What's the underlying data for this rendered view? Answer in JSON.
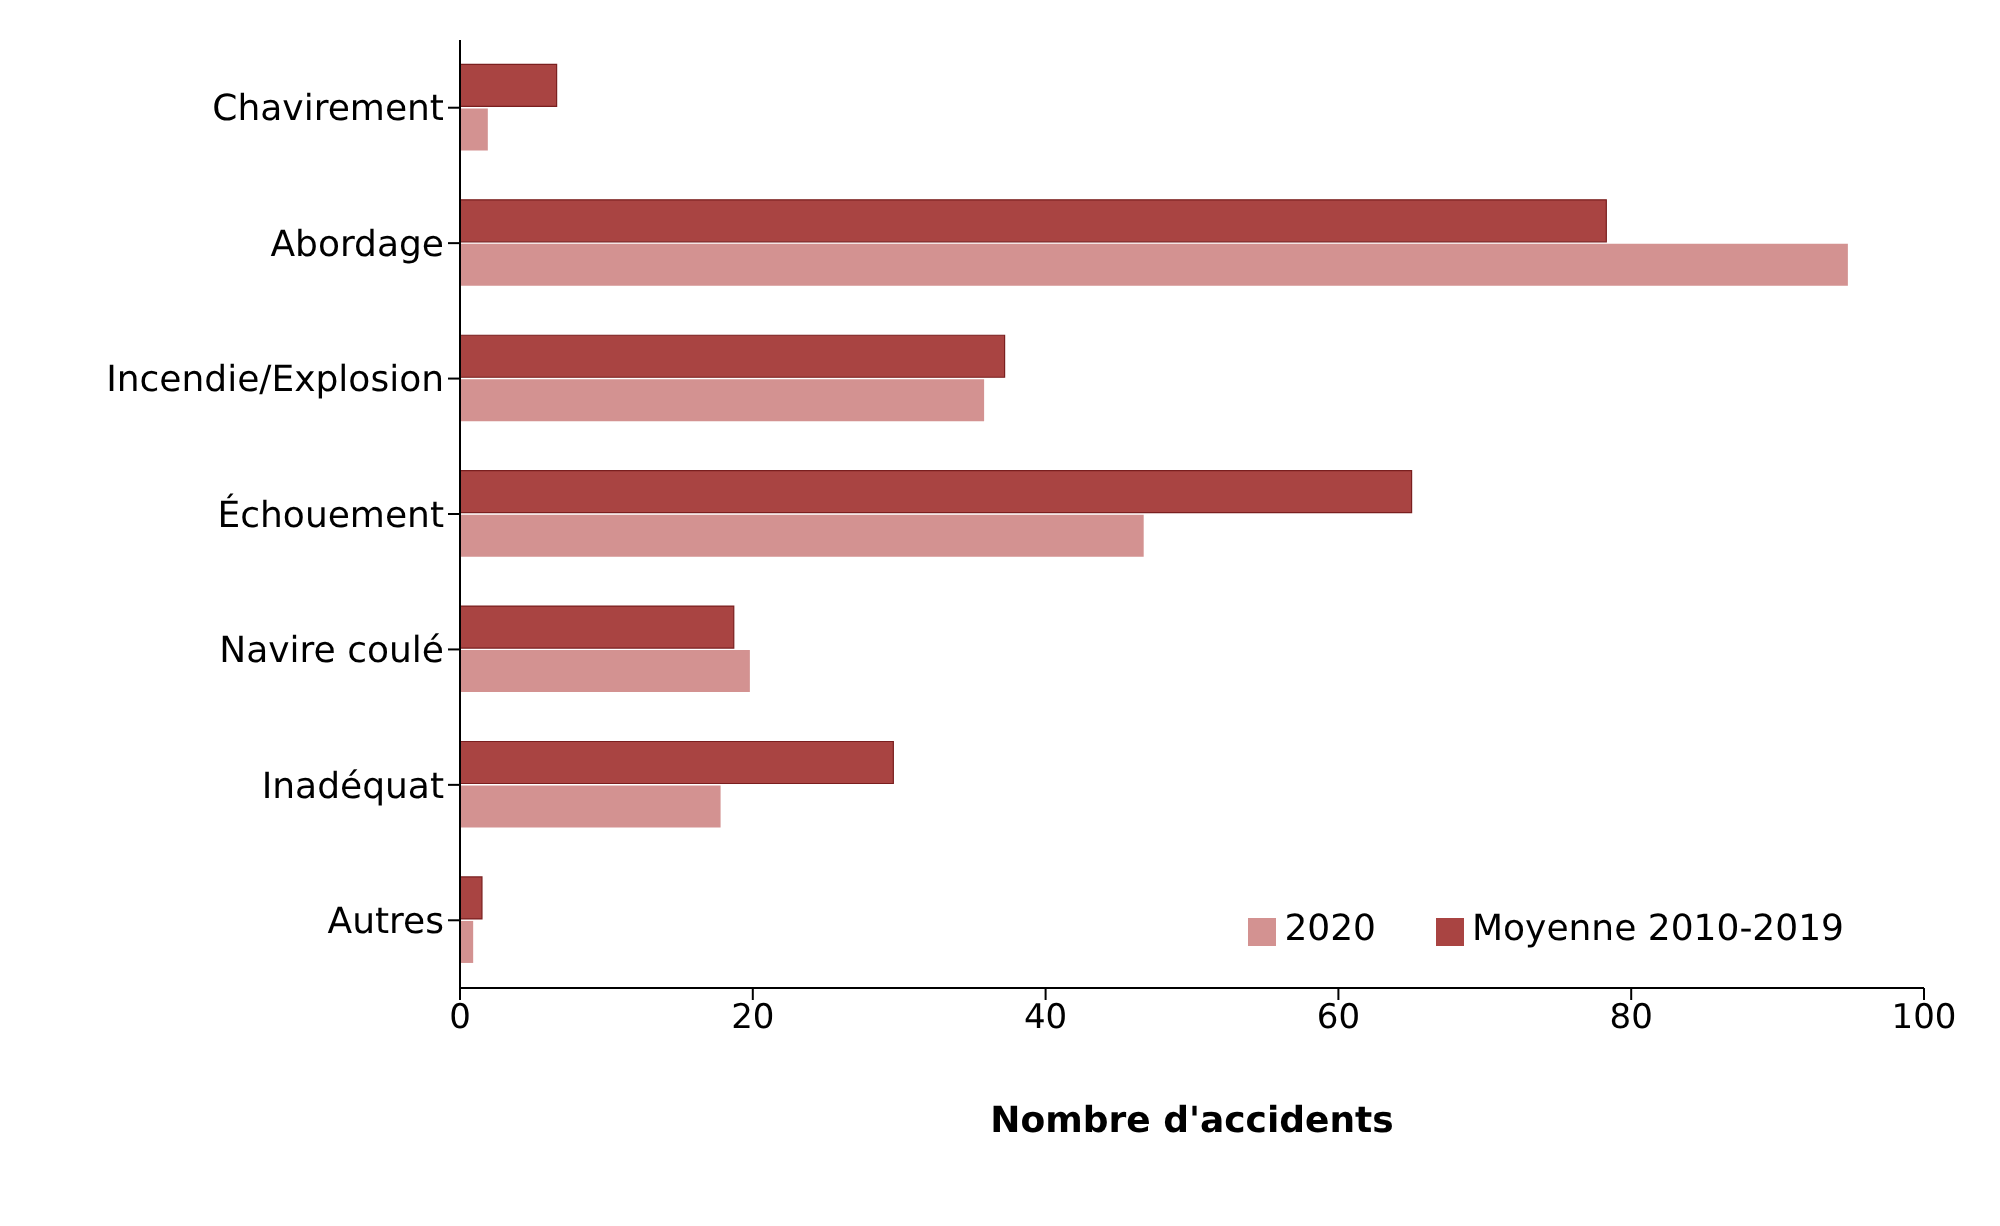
{
  "chart_data": {
    "type": "bar",
    "orientation": "horizontal",
    "xlabel": "Nombre d'accidents",
    "categories": [
      "Chavirement",
      "Abordage",
      "Incendie/Explosion",
      "Échouement",
      "Navire coulé",
      "Inadéquat",
      "Autres"
    ],
    "series": [
      {
        "name": "Moyenne 2010-2019",
        "color": "#a94442",
        "values": [
          6.6,
          78.3,
          37.2,
          65.0,
          18.7,
          29.6,
          1.5
        ]
      },
      {
        "name": "2020",
        "color": "#d39291",
        "values": [
          1.9,
          94.8,
          35.8,
          46.7,
          19.8,
          17.8,
          0.9
        ]
      }
    ],
    "xlim": [
      0,
      100
    ],
    "xticks": [
      0,
      20,
      40,
      60,
      80,
      100
    ],
    "grid": false,
    "legend": "bottom right"
  }
}
